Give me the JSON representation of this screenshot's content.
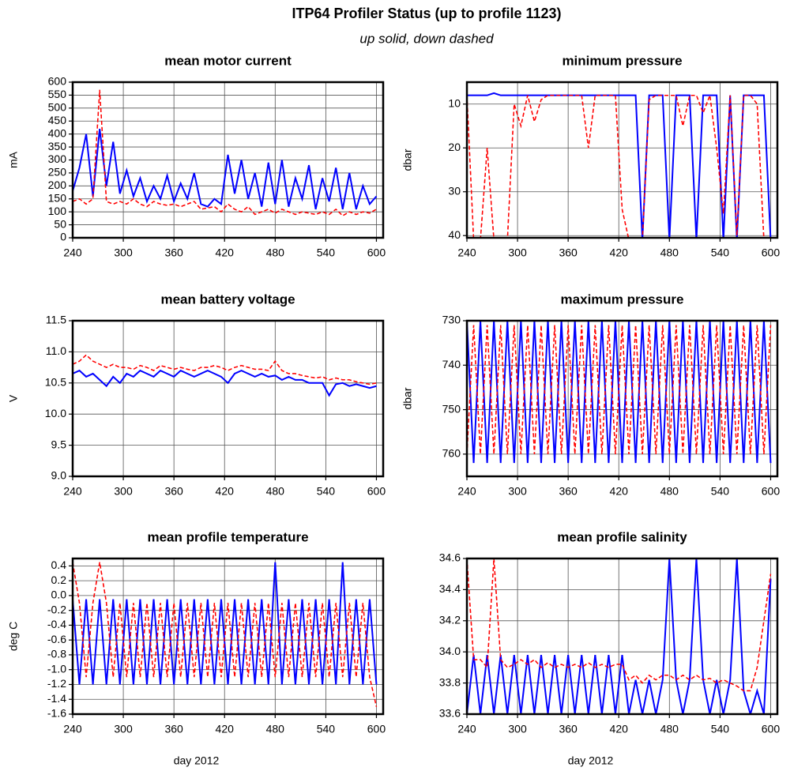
{
  "title": "ITP64 Profiler Status (up to profile 1123)",
  "subtitle": "up solid, down dashed",
  "chart_data": [
    {
      "type": "line",
      "title": "mean motor current",
      "ylabel": "mA",
      "x": [
        240,
        248,
        256,
        264,
        272,
        280,
        288,
        296,
        304,
        312,
        320,
        328,
        336,
        344,
        352,
        360,
        368,
        376,
        384,
        392,
        400,
        408,
        416,
        424,
        432,
        440,
        448,
        456,
        464,
        472,
        480,
        488,
        496,
        504,
        512,
        520,
        528,
        536,
        544,
        552,
        560,
        568,
        576,
        584,
        592,
        600
      ],
      "xlim": [
        240,
        608
      ],
      "xticks": [
        240,
        300,
        360,
        420,
        480,
        540,
        600
      ],
      "ylim": [
        0,
        600
      ],
      "yticks": [
        0,
        50,
        100,
        150,
        200,
        250,
        300,
        350,
        400,
        450,
        500,
        550,
        600
      ],
      "grid": true,
      "series": [
        {
          "name": "up",
          "color": "#0000ff",
          "dashed": false,
          "values": [
            180,
            270,
            400,
            160,
            420,
            200,
            370,
            170,
            260,
            160,
            230,
            140,
            200,
            150,
            240,
            140,
            210,
            150,
            250,
            130,
            120,
            150,
            130,
            320,
            170,
            300,
            150,
            250,
            120,
            290,
            130,
            300,
            120,
            230,
            150,
            280,
            110,
            230,
            140,
            270,
            110,
            250,
            110,
            200,
            130,
            160
          ]
        },
        {
          "name": "down",
          "color": "#ff0000",
          "dashed": true,
          "values": [
            140,
            150,
            130,
            150,
            570,
            140,
            130,
            140,
            130,
            150,
            130,
            120,
            140,
            130,
            125,
            130,
            120,
            130,
            140,
            110,
            115,
            120,
            100,
            130,
            110,
            100,
            120,
            90,
            100,
            110,
            95,
            110,
            100,
            90,
            100,
            95,
            90,
            100,
            90,
            110,
            85,
            100,
            90,
            100,
            95,
            110
          ]
        }
      ]
    },
    {
      "type": "line",
      "title": "minimum pressure",
      "ylabel": "dbar",
      "x": [
        240,
        248,
        256,
        264,
        272,
        280,
        288,
        296,
        304,
        312,
        320,
        328,
        336,
        344,
        352,
        360,
        368,
        376,
        384,
        392,
        400,
        408,
        416,
        424,
        432,
        440,
        448,
        456,
        464,
        472,
        480,
        488,
        496,
        504,
        512,
        520,
        528,
        536,
        544,
        552,
        560,
        568,
        576,
        584,
        592,
        600
      ],
      "xlim": [
        240,
        608
      ],
      "xticks": [
        240,
        300,
        360,
        420,
        480,
        540,
        600
      ],
      "ylim": [
        5,
        40.5
      ],
      "invert_y": true,
      "yticks": [
        10,
        20,
        30,
        40
      ],
      "grid": true,
      "series": [
        {
          "name": "up",
          "color": "#0000ff",
          "dashed": false,
          "values": [
            8,
            8,
            8,
            8,
            7.5,
            8,
            8,
            8,
            8,
            8,
            8,
            8,
            8,
            8,
            8,
            8,
            8,
            8,
            8,
            8,
            8,
            8,
            8,
            8,
            8,
            8,
            41,
            8,
            8,
            8,
            41,
            8,
            8,
            8,
            41,
            8,
            8,
            8,
            41,
            8,
            41,
            8,
            8,
            8,
            8,
            41
          ]
        },
        {
          "name": "down",
          "color": "#ff0000",
          "dashed": true,
          "values": [
            8,
            41,
            41,
            20,
            41,
            41,
            41,
            10,
            15,
            8,
            14,
            9,
            8,
            8,
            8,
            8,
            8,
            8,
            20,
            8,
            8,
            8,
            8,
            34,
            41,
            41,
            41,
            9,
            8,
            8,
            8,
            8,
            15,
            8,
            8,
            12,
            8,
            20,
            35,
            8,
            40,
            8,
            8,
            10,
            41,
            41
          ]
        }
      ]
    },
    {
      "type": "line",
      "title": "mean battery voltage",
      "ylabel": "V",
      "x": [
        240,
        248,
        256,
        264,
        272,
        280,
        288,
        296,
        304,
        312,
        320,
        328,
        336,
        344,
        352,
        360,
        368,
        376,
        384,
        392,
        400,
        408,
        416,
        424,
        432,
        440,
        448,
        456,
        464,
        472,
        480,
        488,
        496,
        504,
        512,
        520,
        528,
        536,
        544,
        552,
        560,
        568,
        576,
        584,
        592,
        600
      ],
      "xlim": [
        240,
        608
      ],
      "xticks": [
        240,
        300,
        360,
        420,
        480,
        540,
        600
      ],
      "ylim": [
        9,
        11.5
      ],
      "yticks": [
        {
          "value": 9,
          "label": "9.0"
        },
        9.5,
        {
          "value": 10,
          "label": "10.0"
        },
        10.5,
        {
          "value": 11,
          "label": "11.0"
        },
        11.5
      ],
      "grid": true,
      "series": [
        {
          "name": "up",
          "color": "#0000ff",
          "dashed": false,
          "values": [
            10.65,
            10.7,
            10.6,
            10.65,
            10.55,
            10.45,
            10.6,
            10.5,
            10.65,
            10.6,
            10.7,
            10.65,
            10.6,
            10.7,
            10.65,
            10.6,
            10.7,
            10.65,
            10.6,
            10.65,
            10.7,
            10.65,
            10.6,
            10.5,
            10.65,
            10.7,
            10.65,
            10.6,
            10.65,
            10.6,
            10.62,
            10.55,
            10.6,
            10.55,
            10.55,
            10.5,
            10.5,
            10.5,
            10.3,
            10.48,
            10.5,
            10.45,
            10.48,
            10.45,
            10.42,
            10.45
          ]
        },
        {
          "name": "down",
          "color": "#ff0000",
          "dashed": true,
          "values": [
            10.8,
            10.85,
            10.95,
            10.85,
            10.8,
            10.75,
            10.8,
            10.75,
            10.75,
            10.72,
            10.78,
            10.75,
            10.7,
            10.78,
            10.75,
            10.72,
            10.75,
            10.72,
            10.7,
            10.75,
            10.75,
            10.78,
            10.75,
            10.7,
            10.75,
            10.78,
            10.75,
            10.72,
            10.72,
            10.7,
            10.85,
            10.7,
            10.65,
            10.65,
            10.62,
            10.6,
            10.58,
            10.6,
            10.55,
            10.58,
            10.55,
            10.55,
            10.52,
            10.5,
            10.48,
            10.5
          ]
        }
      ]
    },
    {
      "type": "line",
      "title": "maximum pressure",
      "ylabel": "dbar",
      "x": [
        240,
        248,
        256,
        264,
        272,
        280,
        288,
        296,
        304,
        312,
        320,
        328,
        336,
        344,
        352,
        360,
        368,
        376,
        384,
        392,
        400,
        408,
        416,
        424,
        432,
        440,
        448,
        456,
        464,
        472,
        480,
        488,
        496,
        504,
        512,
        520,
        528,
        536,
        544,
        552,
        560,
        568,
        576,
        584,
        592,
        600
      ],
      "xlim": [
        240,
        608
      ],
      "xticks": [
        240,
        300,
        360,
        420,
        480,
        540,
        600
      ],
      "ylim": [
        730,
        765
      ],
      "invert_y": true,
      "yticks": [
        730,
        740,
        750,
        760
      ],
      "grid": true,
      "series": [
        {
          "name": "up",
          "color": "#0000ff",
          "dashed": false,
          "values": [
            730,
            762,
            730,
            762,
            730,
            762,
            730,
            762,
            730,
            762,
            730,
            762,
            730,
            762,
            730,
            762,
            730,
            762,
            730,
            762,
            730,
            762,
            730,
            762,
            730,
            762,
            730,
            762,
            730,
            762,
            730,
            762,
            730,
            762,
            730,
            762,
            730,
            762,
            730,
            762,
            730,
            762,
            730,
            762,
            730,
            762
          ]
        },
        {
          "name": "down",
          "color": "#ff0000",
          "dashed": true,
          "values": [
            760,
            731,
            760,
            731,
            760,
            731,
            760,
            731,
            760,
            731,
            760,
            731,
            760,
            731,
            760,
            731,
            760,
            731,
            760,
            731,
            760,
            731,
            760,
            731,
            760,
            731,
            760,
            731,
            760,
            731,
            760,
            731,
            760,
            731,
            760,
            731,
            760,
            731,
            760,
            731,
            760,
            731,
            760,
            731,
            760,
            731
          ]
        }
      ]
    },
    {
      "type": "line",
      "title": "mean profile temperature",
      "ylabel": "deg C",
      "xlabel": "day 2012",
      "x": [
        240,
        248,
        256,
        264,
        272,
        280,
        288,
        296,
        304,
        312,
        320,
        328,
        336,
        344,
        352,
        360,
        368,
        376,
        384,
        392,
        400,
        408,
        416,
        424,
        432,
        440,
        448,
        456,
        464,
        472,
        480,
        488,
        496,
        504,
        512,
        520,
        528,
        536,
        544,
        552,
        560,
        568,
        576,
        584,
        592,
        600
      ],
      "xlim": [
        240,
        608
      ],
      "xticks": [
        240,
        300,
        360,
        420,
        480,
        540,
        600
      ],
      "ylim": [
        -1.6,
        0.5
      ],
      "yticks": [
        -1.6,
        -1.4,
        -1.2,
        {
          "value": -1,
          "label": "-1.0"
        },
        -0.8,
        -0.6,
        -0.4,
        -0.2,
        {
          "value": 0,
          "label": "0.0"
        },
        0.2,
        0.4
      ],
      "grid": true,
      "series": [
        {
          "name": "up",
          "color": "#0000ff",
          "dashed": false,
          "values": [
            -0.05,
            -1.2,
            -0.05,
            -1.2,
            -0.05,
            -1.2,
            -0.05,
            -1.2,
            -0.05,
            -1.2,
            -0.05,
            -1.2,
            -0.05,
            -1.2,
            -0.05,
            -1.2,
            -0.05,
            -1.2,
            -0.05,
            -1.2,
            -0.05,
            -1.2,
            -0.05,
            -1.2,
            -0.05,
            -1.2,
            -0.05,
            -1.2,
            -0.05,
            -1.2,
            0.45,
            -1.2,
            -0.05,
            -1.2,
            -0.05,
            -1.2,
            -0.05,
            -1.2,
            -0.05,
            -1.2,
            0.45,
            -1.2,
            -0.05,
            -1.2,
            -0.05,
            -1.2
          ]
        },
        {
          "name": "down",
          "color": "#ff0000",
          "dashed": true,
          "values": [
            0.45,
            -0.1,
            -1.1,
            -0.1,
            0.45,
            -0.1,
            -1.1,
            -0.1,
            -1.1,
            -0.1,
            -1.1,
            -0.1,
            -1.1,
            -0.1,
            -1.1,
            -0.1,
            -1.1,
            -0.1,
            -1.1,
            -0.1,
            -1.1,
            -0.1,
            -1.1,
            -0.1,
            -1.1,
            -0.1,
            -1.1,
            -0.1,
            -1.1,
            -0.1,
            -1.1,
            -0.1,
            -1.1,
            -0.1,
            -1.1,
            -0.1,
            -1.1,
            -0.1,
            -1.1,
            -0.1,
            -1.1,
            -0.1,
            -1.1,
            -0.1,
            -1.1,
            -1.5
          ]
        }
      ]
    },
    {
      "type": "line",
      "title": "mean profile salinity",
      "xlabel": "day 2012",
      "x": [
        240,
        248,
        256,
        264,
        272,
        280,
        288,
        296,
        304,
        312,
        320,
        328,
        336,
        344,
        352,
        360,
        368,
        376,
        384,
        392,
        400,
        408,
        416,
        424,
        432,
        440,
        448,
        456,
        464,
        472,
        480,
        488,
        496,
        504,
        512,
        520,
        528,
        536,
        544,
        552,
        560,
        568,
        576,
        584,
        592,
        600
      ],
      "xlim": [
        240,
        608
      ],
      "xticks": [
        240,
        300,
        360,
        420,
        480,
        540,
        600
      ],
      "ylim": [
        33.6,
        34.6
      ],
      "yticks": [
        33.6,
        33.8,
        {
          "value": 34,
          "label": "34.0"
        },
        34.2,
        34.4,
        34.6
      ],
      "grid": true,
      "series": [
        {
          "name": "up",
          "color": "#0000ff",
          "dashed": false,
          "values": [
            33.6,
            33.98,
            33.6,
            33.98,
            33.6,
            33.98,
            33.6,
            33.98,
            33.6,
            33.98,
            33.6,
            33.98,
            33.6,
            33.98,
            33.6,
            33.98,
            33.6,
            33.98,
            33.6,
            33.98,
            33.6,
            33.98,
            33.6,
            33.98,
            33.6,
            33.82,
            33.6,
            33.82,
            33.6,
            33.82,
            34.6,
            33.82,
            33.6,
            33.82,
            34.6,
            33.82,
            33.6,
            33.82,
            33.6,
            33.82,
            34.6,
            33.75,
            33.6,
            33.75,
            33.6,
            34.47
          ]
        },
        {
          "name": "down",
          "color": "#ff0000",
          "dashed": true,
          "values": [
            34.6,
            33.95,
            33.95,
            33.9,
            34.6,
            33.95,
            33.9,
            33.92,
            33.95,
            33.92,
            33.95,
            33.9,
            33.93,
            33.9,
            33.92,
            33.9,
            33.92,
            33.9,
            33.93,
            33.9,
            33.92,
            33.9,
            33.92,
            33.92,
            33.82,
            33.85,
            33.8,
            33.85,
            33.82,
            33.85,
            33.85,
            33.82,
            33.85,
            33.82,
            33.85,
            33.82,
            33.83,
            33.8,
            33.82,
            33.8,
            33.78,
            33.75,
            33.75,
            33.9,
            34.2,
            34.5
          ]
        }
      ]
    }
  ]
}
